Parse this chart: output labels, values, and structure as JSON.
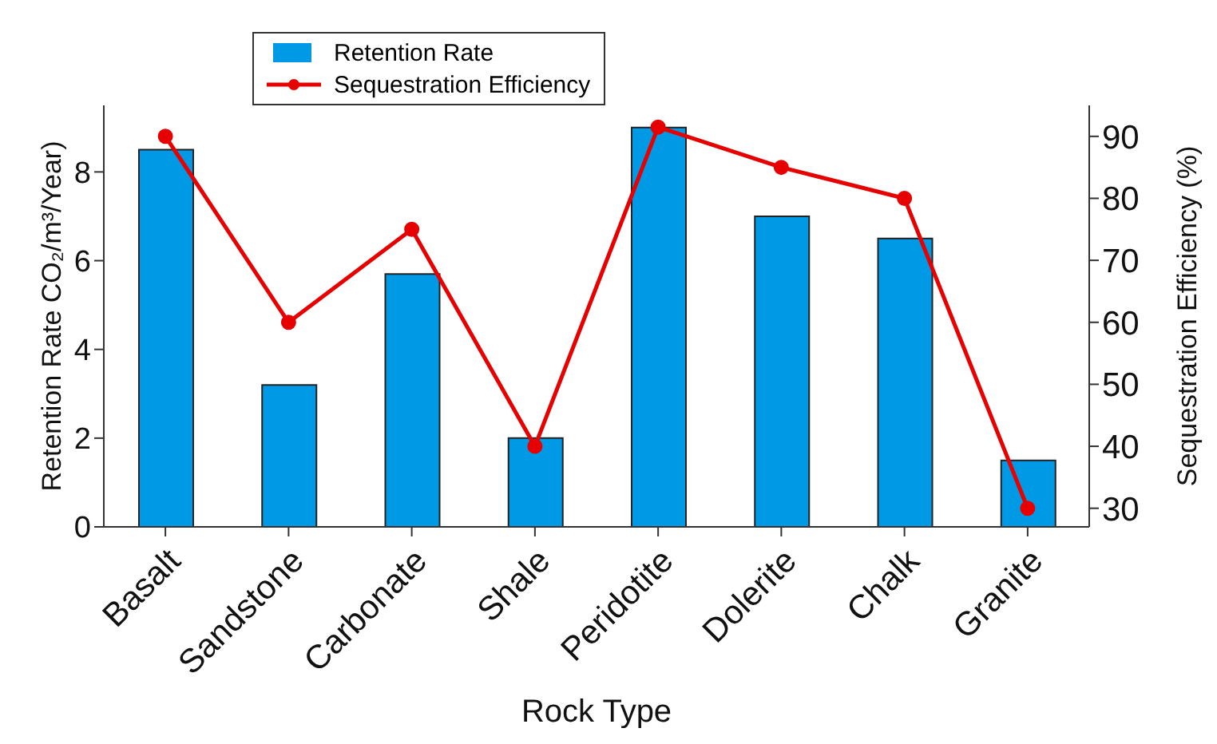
{
  "chart_data": {
    "type": "bar",
    "xlabel": "Rock Type",
    "ylabel": "Retention Rate CO₂/m³/Year)",
    "y2label": "Sequestration Efficiency (%)",
    "categories": [
      "Basalt",
      "Sandstone",
      "Carbonate",
      "Shale",
      "Peridotite",
      "Dolerite",
      "Chalk",
      "Granite"
    ],
    "series": [
      {
        "name": "Retention Rate",
        "color": "#0099e6",
        "values": [
          8.5,
          3.2,
          5.7,
          2.0,
          9.0,
          7.0,
          6.5,
          1.5
        ]
      },
      {
        "name": "Sequestration Efficiency",
        "type": "line",
        "axis": "y2",
        "color": "#e60000",
        "values": [
          90,
          60,
          75,
          40,
          91.5,
          85,
          80,
          30
        ]
      }
    ],
    "ylim": [
      0,
      9.5
    ],
    "yticks": [
      0,
      2,
      4,
      6,
      8
    ],
    "y2lim": [
      27,
      95
    ],
    "y2ticks": [
      30,
      40,
      50,
      60,
      70,
      80,
      90
    ],
    "legend": "top",
    "marker": "circle"
  }
}
